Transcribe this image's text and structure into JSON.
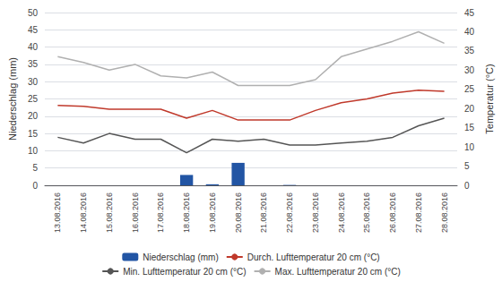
{
  "chart_data": {
    "type": "bar",
    "categories": [
      "13.08.2016",
      "14.08.2016",
      "15.08.2016",
      "16.08.2016",
      "17.08.2016",
      "18.08.2016",
      "19.08.2016",
      "20.08.2016",
      "21.08.2016",
      "22.08.2016",
      "23.08.2016",
      "24.08.2016",
      "25.08.2016",
      "26.08.2016",
      "27.08.2016",
      "28.08.2016"
    ],
    "series": [
      {
        "name": "Niederschlag (mm)",
        "type": "bar",
        "color": "#2255a4",
        "values": [
          0,
          0,
          0,
          0,
          0,
          3.0,
          0.3,
          6.5,
          0,
          0.1,
          0,
          0,
          0,
          0,
          0,
          0
        ]
      },
      {
        "name": "Durch. Lufttemperatur 20 cm (°C)",
        "type": "line",
        "color": "#c0392b",
        "axis": "y2",
        "values": [
          20.8,
          20.6,
          19.8,
          19.8,
          19.8,
          17.5,
          19.5,
          17.0,
          17.0,
          17.0,
          19.5,
          21.5,
          22.5,
          24.0,
          24.8,
          24.5
        ]
      },
      {
        "name": "Min. Lufttemperatur 20 cm (°C)",
        "type": "line",
        "color": "#555555",
        "axis": "y2",
        "values": [
          12.5,
          11.0,
          13.5,
          12.0,
          12.0,
          8.5,
          12.0,
          11.5,
          12.0,
          10.5,
          10.5,
          11.0,
          11.5,
          12.5,
          15.5,
          17.5
        ]
      },
      {
        "name": "Max. Lufttemperatur 20 cm (°C)",
        "type": "line",
        "color": "#b0b0b0",
        "axis": "y2",
        "values": [
          33.5,
          32.0,
          30.0,
          31.5,
          28.5,
          28.0,
          29.5,
          26.0,
          26.0,
          26.0,
          27.5,
          33.5,
          35.5,
          37.5,
          40.0,
          37.0
        ]
      }
    ],
    "ylabel": "Niederschlag (mm)",
    "y2label": "Temperatur (°C)",
    "ylim": [
      0,
      50
    ],
    "yticks": [
      0,
      5,
      10,
      15,
      20,
      25,
      30,
      35,
      40,
      45,
      50
    ],
    "y2lim": [
      0,
      45
    ],
    "y2ticks": [
      0,
      5,
      10,
      15,
      20,
      25,
      30,
      35,
      40,
      45
    ],
    "grid": true,
    "legend": "bottom"
  }
}
